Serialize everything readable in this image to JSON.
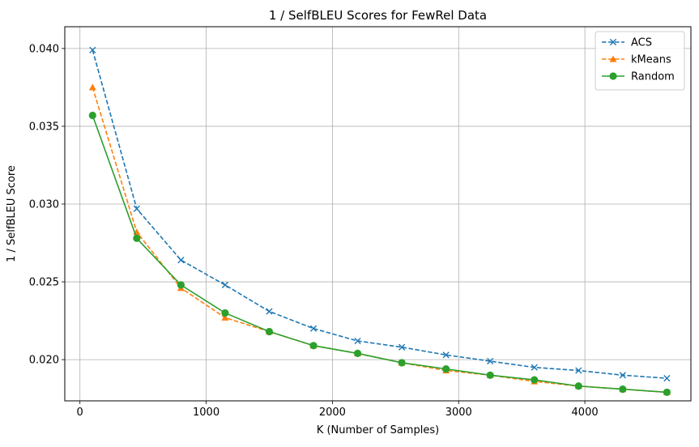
{
  "chart_data": {
    "type": "line",
    "title": "1 / SelfBLEU Scores for FewRel Data",
    "xlabel": "K (Number of Samples)",
    "ylabel": "1 / SelfBLEU Score",
    "xlim": [
      -120,
      4840
    ],
    "ylim": [
      0.01735,
      0.0414
    ],
    "x_ticks": [
      0,
      1000,
      2000,
      3000,
      4000
    ],
    "x_tick_labels": [
      "0",
      "1000",
      "2000",
      "3000",
      "4000"
    ],
    "y_ticks": [
      0.02,
      0.025,
      0.03,
      0.035,
      0.04
    ],
    "y_tick_labels": [
      "0.020",
      "0.025",
      "0.030",
      "0.035",
      "0.040"
    ],
    "grid": true,
    "legend_position": "top-right",
    "x": [
      100,
      450,
      800,
      1150,
      1500,
      1850,
      2200,
      2550,
      2900,
      3250,
      3600,
      3950,
      4300,
      4650
    ],
    "series": [
      {
        "name": "ACS",
        "color": "#1f77b4",
        "marker": "x",
        "line_style": "dashed",
        "values": [
          0.0399,
          0.0297,
          0.0264,
          0.0248,
          0.0231,
          0.022,
          0.0212,
          0.0208,
          0.0203,
          0.0199,
          0.0195,
          0.0193,
          0.019,
          0.0188
        ]
      },
      {
        "name": "kMeans",
        "color": "#ff7f0e",
        "marker": "triangle",
        "line_style": "dashed",
        "values": [
          0.0375,
          0.0282,
          0.0246,
          0.0227,
          0.0218,
          0.0209,
          0.0204,
          0.0198,
          0.0193,
          0.019,
          0.0186,
          0.0183,
          0.0181,
          0.0179
        ]
      },
      {
        "name": "Random",
        "color": "#2ca02c",
        "marker": "circle",
        "line_style": "solid",
        "values": [
          0.0357,
          0.0278,
          0.0248,
          0.023,
          0.0218,
          0.0209,
          0.0204,
          0.0198,
          0.0194,
          0.019,
          0.0187,
          0.0183,
          0.0181,
          0.0179
        ]
      }
    ]
  }
}
